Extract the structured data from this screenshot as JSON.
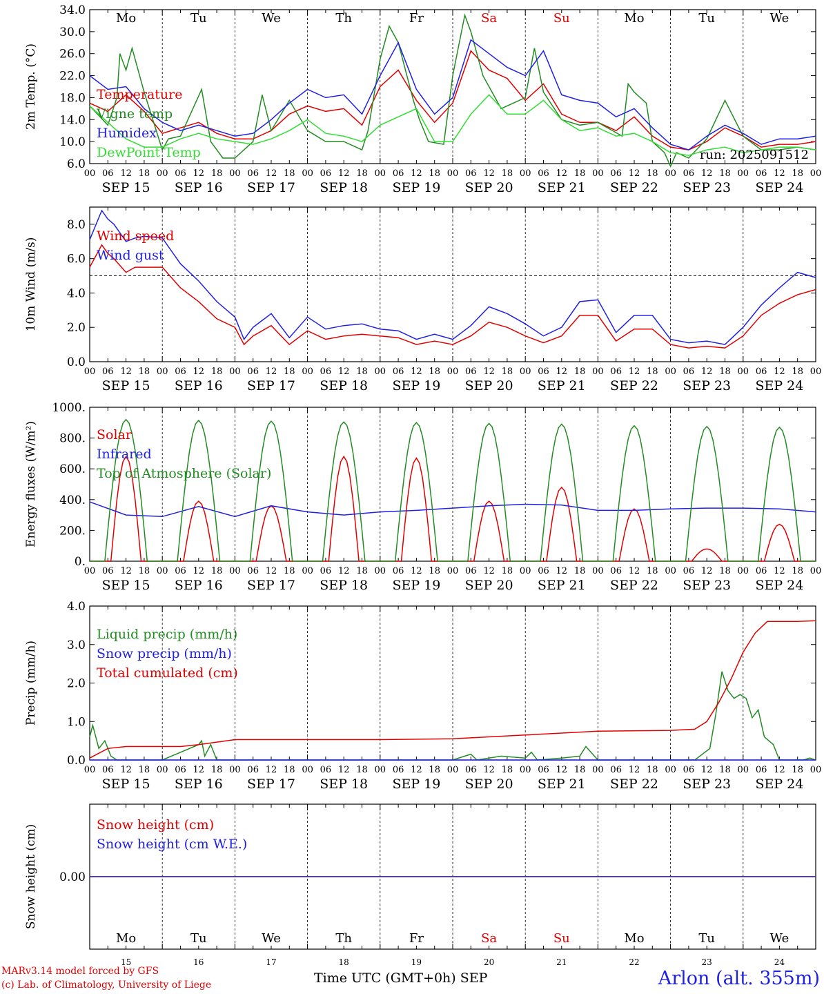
{
  "footer": {
    "credit_line1": "MARv3.14 model forced by GFS",
    "credit_line2": "(c) Lab. of Climatology, University of Liege",
    "xaxis_title": "Time UTC (GMT+0h) SEP",
    "station": "Arlon (alt. 355m)"
  },
  "colors": {
    "red": "#e00000",
    "blue": "#2020e0",
    "green": "#228b22",
    "lightgreen": "#33dd33",
    "weekend": "#e00000"
  },
  "chart_data": [
    {
      "type": "line",
      "ylabel": "2m Temp. (°C)",
      "ylim": [
        6,
        34
      ],
      "yticks": [
        "6.0",
        "10.0",
        "14.0",
        "18.0",
        "22.0",
        "26.0",
        "30.0",
        "34.0"
      ],
      "hour_ticks": [
        "00",
        "06",
        "12",
        "18"
      ],
      "dates": [
        "SEP 15",
        "SEP 16",
        "SEP 17",
        "SEP 18",
        "SEP 19",
        "SEP 20",
        "SEP 21",
        "SEP 22",
        "SEP 23",
        "SEP 24"
      ],
      "weekdays": [
        "Mo",
        "Tu",
        "We",
        "Th",
        "Fr",
        "Sa",
        "Su",
        "Mo",
        "Tu",
        "We"
      ],
      "weekend_days": [
        5,
        6
      ],
      "annotation": "run: 2025091512",
      "series": [
        {
          "name": "Temperature",
          "color": "red",
          "t": [
            0,
            6,
            12,
            18,
            24,
            30,
            36,
            42,
            48,
            54,
            60,
            66,
            72,
            78,
            84,
            90,
            96,
            102,
            108,
            114,
            120,
            126,
            132,
            138,
            144,
            150,
            156,
            162,
            168,
            174,
            180,
            186,
            192,
            198,
            204,
            210,
            216,
            222,
            228,
            234,
            240
          ],
          "v": [
            17,
            15.5,
            18.5,
            15.5,
            11.5,
            12.5,
            13.5,
            11.5,
            10.5,
            10.5,
            12,
            15,
            16.5,
            15.5,
            16,
            13,
            20,
            23,
            17.5,
            13.5,
            17,
            26.5,
            23,
            21.5,
            17.5,
            20.5,
            15,
            13.5,
            13.5,
            12,
            14.5,
            11,
            9,
            8.5,
            10,
            12.5,
            11,
            9,
            9.5,
            9.5,
            10
          ]
        },
        {
          "name": "Vigne temp",
          "color": "green",
          "t": [
            0,
            6,
            9,
            10,
            12,
            14,
            18,
            24,
            26,
            30,
            37,
            40,
            44,
            48,
            54,
            57,
            60,
            66,
            72,
            78,
            84,
            90,
            92,
            96,
            99,
            102,
            107,
            109,
            112,
            117,
            120,
            124,
            126,
            130,
            134,
            136,
            140,
            144,
            147,
            150,
            156,
            162,
            168,
            176,
            178,
            180,
            184,
            186,
            190,
            192,
            194,
            198,
            204,
            210,
            216,
            222,
            228,
            234,
            240
          ],
          "v": [
            16.5,
            13,
            18,
            26,
            23,
            27,
            19,
            8.5,
            10.5,
            11,
            19.5,
            10,
            7,
            7,
            10,
            18.5,
            12,
            17.5,
            12,
            10,
            10,
            8.5,
            12,
            25,
            31,
            28,
            17.5,
            14,
            10,
            9.5,
            22,
            33,
            30,
            22,
            18,
            16,
            17,
            18,
            27,
            19,
            14,
            13,
            13.5,
            11,
            20.5,
            19,
            17,
            10,
            8,
            5.5,
            8,
            7,
            10.5,
            17.5,
            11,
            8.5,
            8.5,
            9,
            8.5
          ]
        },
        {
          "name": "Humidex",
          "color": "blue",
          "t": [
            0,
            6,
            12,
            18,
            24,
            30,
            36,
            42,
            48,
            54,
            60,
            66,
            72,
            78,
            84,
            90,
            96,
            102,
            108,
            114,
            120,
            126,
            132,
            138,
            144,
            150,
            156,
            162,
            168,
            174,
            180,
            186,
            192,
            198,
            204,
            210,
            216,
            222,
            228,
            234,
            240
          ],
          "v": [
            22,
            19.5,
            20,
            16,
            13.5,
            12,
            13,
            12,
            11,
            11.5,
            14,
            17,
            19.5,
            18,
            18.5,
            15,
            22,
            28,
            19.5,
            15,
            18,
            28.5,
            26,
            23.5,
            22,
            26.5,
            18.5,
            17.5,
            17,
            14.5,
            16,
            12.5,
            9.5,
            8.5,
            11,
            13,
            11.5,
            9.5,
            10.5,
            10.5,
            11
          ]
        },
        {
          "name": "DewPoint Temp",
          "color": "lightgreen",
          "t": [
            0,
            6,
            12,
            18,
            24,
            30,
            36,
            42,
            48,
            54,
            60,
            66,
            72,
            78,
            84,
            90,
            96,
            102,
            108,
            114,
            120,
            126,
            132,
            138,
            144,
            150,
            156,
            162,
            168,
            174,
            180,
            186,
            192,
            198,
            204,
            210,
            216,
            222,
            228,
            234,
            240
          ],
          "v": [
            16.5,
            13.5,
            10.5,
            9,
            9,
            10.5,
            11.5,
            10.5,
            10,
            9.5,
            10.5,
            12,
            14,
            11.5,
            11,
            10,
            13,
            14.5,
            16,
            10,
            10,
            15,
            18.5,
            15,
            15,
            17.5,
            14,
            12,
            12.5,
            11,
            11.5,
            10,
            8,
            7.5,
            8.5,
            9,
            8,
            8.5,
            9,
            9,
            8.5
          ]
        }
      ]
    },
    {
      "type": "line",
      "ylabel": "10m Wind (m/s)",
      "ylim": [
        0,
        9
      ],
      "yticks": [
        "0.0",
        "2.0",
        "4.0",
        "6.0",
        "8.0"
      ],
      "reference_line": 5,
      "dates": [
        "SEP 15",
        "SEP 16",
        "SEP 17",
        "SEP 18",
        "SEP 19",
        "SEP 20",
        "SEP 21",
        "SEP 22",
        "SEP 23",
        "SEP 24"
      ],
      "series": [
        {
          "name": "Wind speed",
          "color": "red",
          "t": [
            0,
            4,
            6,
            8,
            12,
            15,
            18,
            24,
            30,
            36,
            42,
            48,
            51,
            54,
            60,
            66,
            72,
            78,
            84,
            90,
            96,
            102,
            108,
            114,
            120,
            126,
            132,
            138,
            144,
            150,
            156,
            162,
            168,
            174,
            180,
            186,
            192,
            198,
            204,
            210,
            216,
            222,
            228,
            234,
            240
          ],
          "v": [
            5.5,
            6.8,
            6.3,
            6,
            5.2,
            5.5,
            5.5,
            5.5,
            4.3,
            3.5,
            2.5,
            2,
            1,
            1.5,
            2.1,
            1,
            1.8,
            1.3,
            1.5,
            1.6,
            1.5,
            1.4,
            1,
            1.2,
            1,
            1.5,
            2.3,
            2,
            1.5,
            1.1,
            1.5,
            2.7,
            2.7,
            1.2,
            1.9,
            1.9,
            1,
            0.8,
            0.9,
            0.8,
            1.5,
            2.7,
            3.4,
            3.9,
            4.2
          ]
        },
        {
          "name": "Wind gust",
          "color": "blue",
          "t": [
            0,
            4,
            6,
            8,
            12,
            15,
            18,
            24,
            30,
            36,
            42,
            48,
            51,
            54,
            60,
            66,
            72,
            78,
            84,
            90,
            96,
            102,
            108,
            114,
            120,
            126,
            132,
            138,
            144,
            150,
            156,
            162,
            168,
            174,
            180,
            186,
            192,
            198,
            204,
            210,
            216,
            222,
            228,
            234,
            240
          ],
          "v": [
            7.1,
            8.8,
            8.3,
            8,
            7,
            7.2,
            7.3,
            7.2,
            5.7,
            4.7,
            3.5,
            2.6,
            1.3,
            2,
            2.8,
            1.4,
            2.6,
            1.9,
            2.1,
            2.2,
            1.9,
            1.8,
            1.3,
            1.6,
            1.3,
            2.1,
            3.2,
            2.8,
            2.2,
            1.5,
            2,
            3.5,
            3.6,
            1.7,
            2.7,
            2.7,
            1.3,
            1.1,
            1.2,
            1,
            2,
            3.3,
            4.3,
            5.2,
            4.9
          ]
        }
      ]
    },
    {
      "type": "line",
      "ylabel": "Energy fluxes (W/m²)",
      "ylim": [
        0,
        1000
      ],
      "yticks": [
        "0.",
        "200.",
        "400.",
        "600.",
        "800.",
        "1000."
      ],
      "dates": [
        "SEP 15",
        "SEP 16",
        "SEP 17",
        "SEP 18",
        "SEP 19",
        "SEP 20",
        "SEP 21",
        "SEP 22",
        "SEP 23",
        "SEP 24"
      ],
      "series": [
        {
          "name": "Solar",
          "color": "red",
          "daily_peak_hour": 12,
          "daily_peaks": [
            680,
            390,
            360,
            680,
            670,
            390,
            480,
            340,
            80,
            240
          ]
        },
        {
          "name": "Infrared",
          "color": "blue",
          "t": [
            0,
            12,
            24,
            36,
            48,
            60,
            72,
            84,
            96,
            108,
            120,
            132,
            144,
            156,
            168,
            180,
            192,
            204,
            216,
            228,
            240
          ],
          "v": [
            385,
            300,
            290,
            355,
            290,
            360,
            320,
            300,
            320,
            330,
            345,
            360,
            370,
            365,
            330,
            330,
            340,
            345,
            345,
            340,
            320
          ]
        },
        {
          "name": "Top of Atmosphere (Solar)",
          "color": "green",
          "daily_peak_hour": 12,
          "daily_peaks": [
            920,
            915,
            910,
            905,
            900,
            895,
            890,
            880,
            875,
            870
          ]
        }
      ]
    },
    {
      "type": "line",
      "ylabel": "Precip (mm/h)",
      "ylim": [
        0,
        4
      ],
      "yticks": [
        "0.0",
        "1.0",
        "2.0",
        "3.0",
        "4.0"
      ],
      "dates": [
        "SEP 15",
        "SEP 16",
        "SEP 17",
        "SEP 18",
        "SEP 19",
        "SEP 20",
        "SEP 21",
        "SEP 22",
        "SEP 23",
        "SEP 24"
      ],
      "series": [
        {
          "name": "Liquid precip (mm/h)",
          "color": "green",
          "t": [
            0,
            1,
            3,
            5,
            7,
            9,
            12,
            24,
            36,
            37,
            38,
            40,
            42,
            48,
            120,
            124,
            126,
            128,
            136,
            144,
            146,
            148,
            156,
            162,
            164,
            168,
            200,
            205,
            207,
            209,
            211,
            213,
            215,
            217,
            219,
            221,
            223,
            226,
            228,
            236,
            238,
            240
          ],
          "v": [
            0.6,
            0.9,
            0.3,
            0.5,
            0.1,
            0,
            0,
            0,
            0.4,
            0.5,
            0.1,
            0.4,
            0,
            0,
            0,
            0.1,
            0.15,
            0,
            0.1,
            0.05,
            0.2,
            0,
            0.05,
            0.1,
            0.35,
            0,
            0,
            0.3,
            1.2,
            2.3,
            1.8,
            1.6,
            1.7,
            1.6,
            1.1,
            1.3,
            0.6,
            0.4,
            0,
            0,
            0.05,
            0
          ]
        },
        {
          "name": "Snow precip (mm/h)",
          "color": "blue",
          "t": [
            0,
            240
          ],
          "v": [
            0,
            0
          ]
        },
        {
          "name": "Total cumulated (cm)",
          "color": "red",
          "t": [
            0,
            6,
            12,
            30,
            36,
            48,
            96,
            120,
            144,
            168,
            192,
            200,
            204,
            208,
            212,
            216,
            220,
            224,
            228,
            234,
            240
          ],
          "v": [
            0.05,
            0.3,
            0.35,
            0.35,
            0.4,
            0.53,
            0.53,
            0.55,
            0.65,
            0.75,
            0.77,
            0.8,
            1.0,
            1.5,
            2.1,
            2.8,
            3.3,
            3.6,
            3.6,
            3.6,
            3.62
          ]
        }
      ]
    },
    {
      "type": "line",
      "ylabel": "Snow height (cm)",
      "ylim": [
        -1,
        1
      ],
      "yticks": [
        "0.00"
      ],
      "weekdays": [
        "Mo",
        "Tu",
        "We",
        "Th",
        "Fr",
        "Sa",
        "Su",
        "Mo",
        "Tu",
        "We"
      ],
      "daynums": [
        "15",
        "16",
        "17",
        "18",
        "19",
        "20",
        "21",
        "22",
        "23",
        "24"
      ],
      "weekend_days": [
        5,
        6
      ],
      "series": [
        {
          "name": "Snow height (cm)",
          "color": "red",
          "t": [
            0,
            240
          ],
          "v": [
            0,
            0
          ]
        },
        {
          "name": "Snow height (cm W.E.)",
          "color": "blue",
          "t": [
            0,
            240
          ],
          "v": [
            0,
            0
          ]
        }
      ]
    }
  ]
}
